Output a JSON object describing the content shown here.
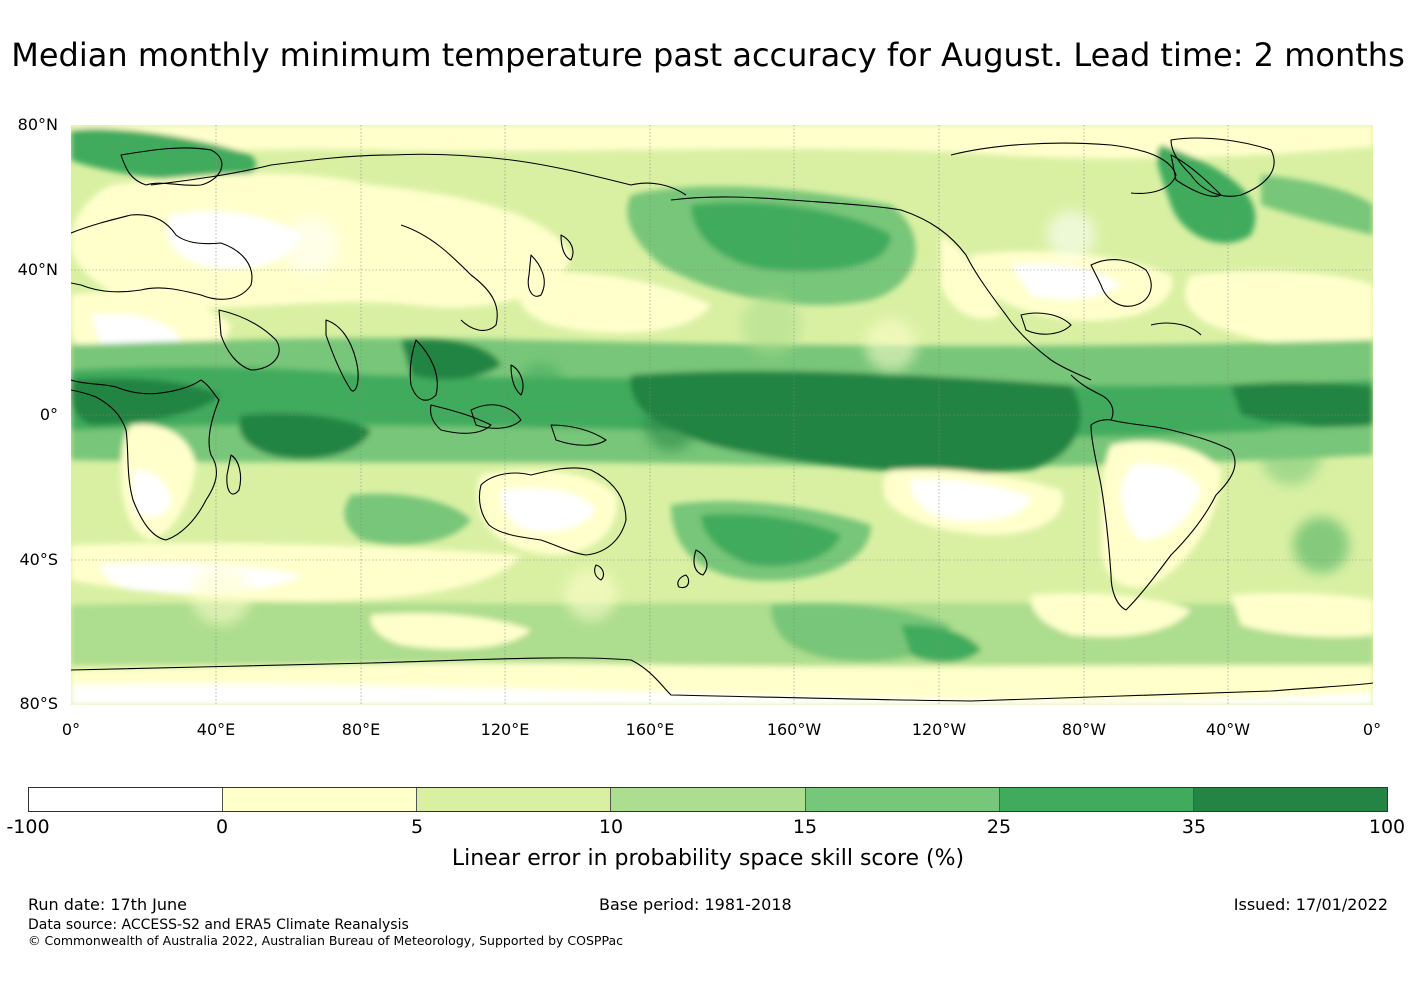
{
  "title": "Median monthly minimum temperature past accuracy for August. Lead time: 2 months",
  "map": {
    "lat_labels": [
      "80°N",
      "40°N",
      "0°",
      "40°S",
      "80°S"
    ],
    "lon_labels": [
      "0°",
      "40°E",
      "80°E",
      "120°E",
      "160°E",
      "160°W",
      "120°W",
      "80°W",
      "40°W",
      "0°"
    ]
  },
  "colorbar": {
    "ticks": [
      "-100",
      "0",
      "5",
      "10",
      "15",
      "25",
      "35",
      "100"
    ],
    "colors": [
      "#ffffff",
      "#ffffcc",
      "#d9f0a3",
      "#addd8e",
      "#78c679",
      "#41ab5d",
      "#238443"
    ],
    "label": "Linear error in probability space skill score (%)"
  },
  "footer": {
    "run_date": "Run date: 17th June",
    "base_period": "Base period: 1981-2018",
    "issued": "Issued: 17/01/2022",
    "data_source": "Data source: ACCESS-S2 and ERA5 Climate Reanalysis",
    "copyright": "© Commonwealth of Australia 2022, Australian Bureau of Meteorology, Supported by COSPPac"
  }
}
